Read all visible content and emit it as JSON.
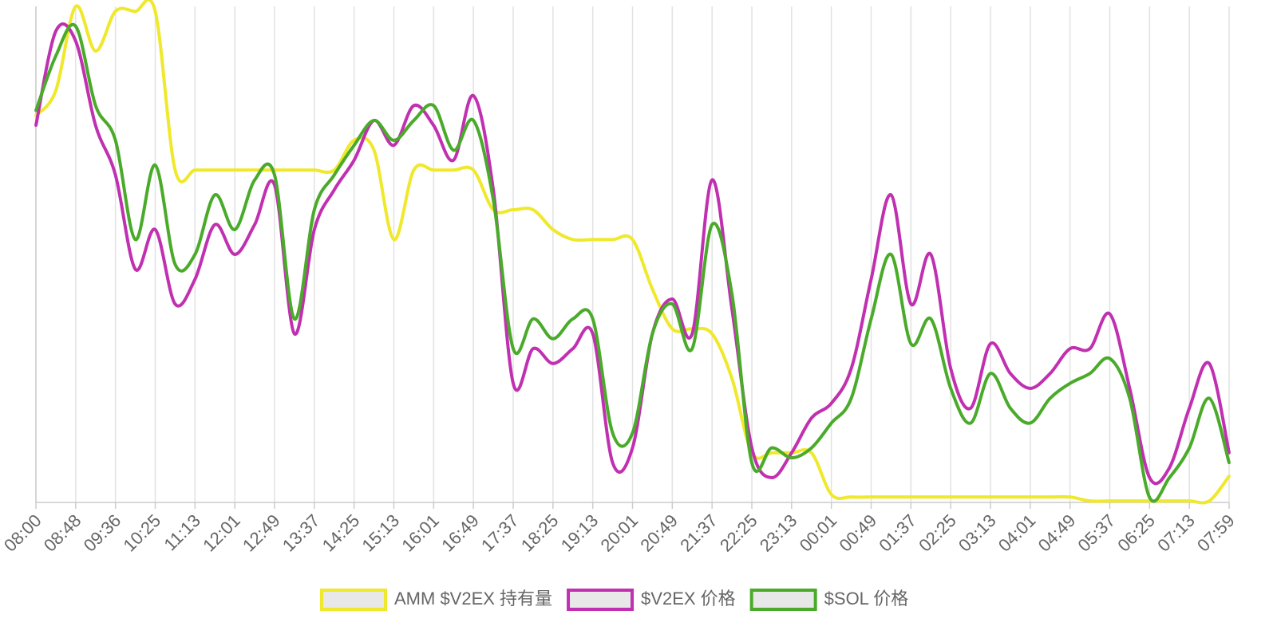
{
  "chart_data": {
    "type": "line",
    "categories": [
      "08:00",
      null,
      "08:48",
      null,
      "09:36",
      null,
      "10:25",
      null,
      "11:13",
      null,
      "12:01",
      null,
      "12:49",
      null,
      "13:37",
      null,
      "14:25",
      null,
      "15:13",
      null,
      "16:01",
      null,
      "16:49",
      null,
      "17:37",
      null,
      "18:25",
      null,
      "19:13",
      null,
      "20:01",
      null,
      "20:49",
      null,
      "21:37",
      null,
      "22:25",
      null,
      "23:13",
      null,
      "00:01",
      null,
      "00:49",
      null,
      "01:37",
      null,
      "02:25",
      null,
      "03:13",
      null,
      "04:01",
      null,
      "04:49",
      null,
      "05:37",
      null,
      "06:25",
      null,
      "07:13",
      null,
      "07:59"
    ],
    "ylim": [
      0,
      100
    ],
    "grid": true,
    "legend": "bottom",
    "series": [
      {
        "name": "AMM $V2EX 持有量",
        "color": "#f0e82a",
        "values": [
          78,
          83,
          100,
          91,
          99,
          99,
          99,
          67,
          67,
          67,
          67,
          67,
          67,
          67,
          67,
          67,
          73,
          71,
          53,
          67,
          67,
          67,
          67,
          59,
          59,
          59,
          55,
          53,
          53,
          53,
          53,
          43,
          35,
          35,
          34,
          25,
          10,
          10,
          10,
          10,
          1.6,
          1.1,
          1.1,
          1.1,
          1.1,
          1.1,
          1.1,
          1.1,
          1.1,
          1.1,
          1.1,
          1.1,
          1.1,
          0.3,
          0.3,
          0.3,
          0.3,
          0.3,
          0.3,
          0.3,
          5.3
        ]
      },
      {
        "name": "$V2EX 价格",
        "color": "#c030b0",
        "values": [
          76,
          95,
          93,
          76,
          66,
          47,
          55,
          40,
          45,
          56,
          50,
          56,
          64,
          34,
          55,
          63,
          69,
          77,
          72,
          80,
          76,
          69,
          82,
          63,
          24,
          31,
          28,
          31,
          34,
          8,
          11,
          34,
          41,
          34,
          65,
          39,
          11,
          5,
          10,
          17,
          20,
          27,
          45,
          62,
          40,
          50,
          27,
          19,
          32,
          26,
          23,
          26,
          31,
          31,
          38,
          23,
          5,
          7,
          19,
          28,
          10
        ]
      },
      {
        "name": "$SOL 价格",
        "color": "#4aaa2a",
        "values": [
          79,
          90,
          96,
          80,
          73,
          53,
          68,
          48,
          50,
          62,
          55,
          65,
          66,
          37,
          59,
          66,
          72,
          77,
          73,
          77,
          80,
          71,
          77,
          61,
          31,
          37,
          33,
          37,
          37,
          14,
          14,
          34,
          40,
          31,
          56,
          42,
          8,
          11,
          9,
          11,
          16,
          21,
          37,
          50,
          32,
          37,
          23,
          16,
          26,
          19,
          16,
          21,
          24,
          26,
          29,
          21,
          1,
          5,
          11,
          21,
          8
        ]
      }
    ]
  }
}
